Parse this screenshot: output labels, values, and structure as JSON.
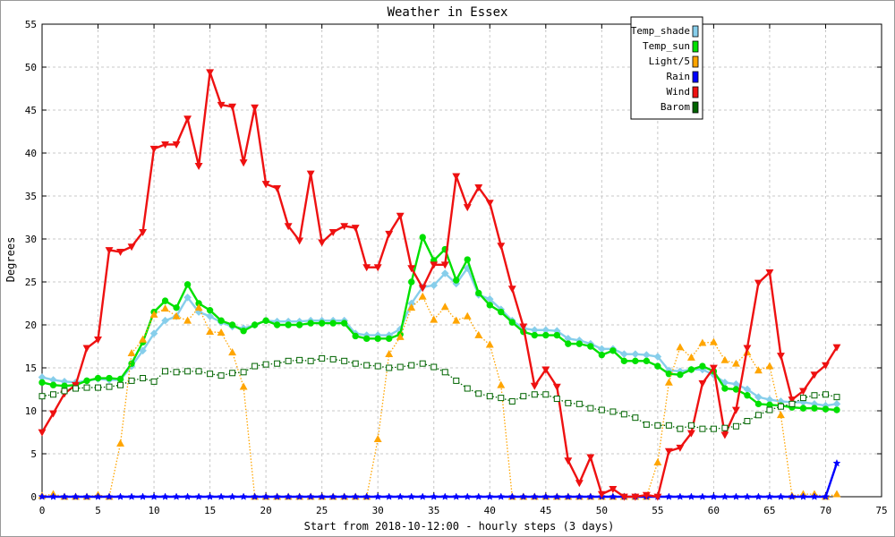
{
  "chart_data": {
    "type": "line",
    "title": "Weather in Essex",
    "xlabel": "Start from 2018-10-12:00 - hourly steps (3 days)",
    "ylabel": "Degrees",
    "xlim": [
      0,
      75
    ],
    "ylim": [
      0,
      55
    ],
    "x_ticks": [
      0,
      5,
      10,
      15,
      20,
      25,
      30,
      35,
      40,
      45,
      50,
      55,
      60,
      65,
      70,
      75
    ],
    "y_ticks": [
      0,
      5,
      10,
      15,
      20,
      25,
      30,
      35,
      40,
      45,
      50,
      55
    ],
    "grid": true,
    "legend_position": "top-right",
    "series": [
      {
        "name": "Temp_shade",
        "color": "#87ceeb",
        "marker": "diamond",
        "dash": "solid",
        "values": [
          13.9,
          13.6,
          13.4,
          13.3,
          13.5,
          13.7,
          13.6,
          13.6,
          15.2,
          17.0,
          19.0,
          20.5,
          21.0,
          23.2,
          21.5,
          21.0,
          20.3,
          19.8,
          19.6,
          20.0,
          20.5,
          20.4,
          20.4,
          20.4,
          20.5,
          20.5,
          20.5,
          20.5,
          19.0,
          18.8,
          18.8,
          18.8,
          19.5,
          22.5,
          24.4,
          24.6,
          26.0,
          24.8,
          26.6,
          23.5,
          23.0,
          21.8,
          20.5,
          19.6,
          19.4,
          19.4,
          19.3,
          18.4,
          18.2,
          17.8,
          17.2,
          17.2,
          16.6,
          16.6,
          16.5,
          16.3,
          14.7,
          14.6,
          14.8,
          14.8,
          14.2,
          13.3,
          13.1,
          12.5,
          11.6,
          11.3,
          11.1,
          11.0,
          11.0,
          10.8,
          10.6,
          10.8
        ]
      },
      {
        "name": "Temp_sun",
        "color": "#00e000",
        "marker": "circle",
        "dash": "solid",
        "values": [
          13.3,
          13.0,
          12.9,
          13.0,
          13.5,
          13.8,
          13.8,
          13.7,
          15.5,
          18.0,
          21.5,
          22.8,
          22.0,
          24.7,
          22.5,
          21.7,
          20.5,
          20.0,
          19.3,
          20.0,
          20.5,
          20.0,
          20.0,
          20.0,
          20.2,
          20.2,
          20.2,
          20.2,
          18.7,
          18.4,
          18.4,
          18.4,
          18.9,
          25.0,
          30.2,
          27.5,
          28.8,
          25.2,
          27.6,
          23.7,
          22.3,
          21.5,
          20.3,
          19.2,
          18.8,
          18.8,
          18.8,
          17.8,
          17.8,
          17.5,
          16.5,
          17.0,
          15.8,
          15.8,
          15.8,
          15.2,
          14.3,
          14.2,
          14.8,
          15.2,
          14.6,
          12.6,
          12.5,
          11.8,
          10.8,
          10.7,
          10.6,
          10.4,
          10.3,
          10.3,
          10.2,
          10.1
        ]
      },
      {
        "name": "Light/5",
        "color": "#ffa500",
        "marker": "triangle-up",
        "dash": "dotted",
        "values": [
          0.1,
          0.3,
          0,
          0,
          0,
          0.2,
          0,
          6.2,
          16.7,
          18.3,
          21.2,
          21.9,
          21.0,
          20.5,
          22.0,
          19.2,
          19.1,
          16.8,
          12.8,
          0,
          0,
          0,
          0,
          0,
          0,
          0,
          0,
          0,
          0,
          0,
          6.7,
          16.6,
          18.6,
          22.0,
          23.3,
          20.6,
          22.1,
          20.5,
          21.0,
          18.8,
          17.7,
          13.0,
          0,
          0,
          0,
          0,
          0,
          0,
          0,
          0,
          0,
          0,
          0,
          0,
          0,
          4.0,
          13.3,
          17.4,
          16.2,
          17.9,
          18.0,
          15.9,
          15.5,
          16.8,
          14.7,
          15.2,
          9.5,
          0.1,
          0.3,
          0.3,
          0,
          0.3
        ]
      },
      {
        "name": "Rain",
        "color": "#0000ff",
        "marker": "star",
        "dash": "solid",
        "values": [
          0,
          0,
          0,
          0,
          0,
          0,
          0,
          0,
          0,
          0,
          0,
          0,
          0,
          0,
          0,
          0,
          0,
          0,
          0,
          0,
          0,
          0,
          0,
          0,
          0,
          0,
          0,
          0,
          0,
          0,
          0,
          0,
          0,
          0,
          0,
          0,
          0,
          0,
          0,
          0,
          0,
          0,
          0,
          0,
          0,
          0,
          0,
          0,
          0,
          0,
          0,
          0,
          0,
          0,
          0,
          0,
          0,
          0,
          0,
          0,
          0,
          0,
          0,
          0,
          0,
          0,
          0,
          0,
          0,
          0,
          0,
          3.9
        ]
      },
      {
        "name": "Wind",
        "color": "#ee1111",
        "marker": "triangle-down",
        "dash": "solid",
        "values": [
          7.5,
          9.7,
          12.0,
          13.0,
          17.3,
          18.3,
          28.7,
          28.5,
          29.1,
          30.8,
          40.5,
          41.0,
          41.0,
          44.0,
          38.5,
          49.4,
          45.6,
          45.4,
          38.9,
          45.3,
          36.4,
          35.9,
          31.5,
          29.8,
          37.6,
          29.6,
          30.8,
          31.5,
          31.3,
          26.7,
          26.7,
          30.6,
          32.7,
          26.6,
          24.3,
          27.0,
          27.0,
          37.3,
          33.7,
          36.0,
          34.2,
          29.2,
          24.2,
          19.8,
          12.9,
          14.8,
          12.8,
          4.2,
          1.6,
          4.6,
          0.3,
          0.9,
          0,
          0,
          0.2,
          0,
          5.3,
          5.7,
          7.4,
          13.2,
          15.0,
          7.2,
          10.1,
          17.3,
          24.9,
          26.1,
          16.4,
          11.3,
          12.3,
          14.2,
          15.3,
          17.4
        ]
      },
      {
        "name": "Barom",
        "color": "#006400",
        "marker": "square-open",
        "dash": "dotted",
        "values": [
          11.7,
          11.9,
          12.3,
          12.6,
          12.7,
          12.7,
          12.8,
          13.0,
          13.5,
          13.8,
          13.4,
          14.6,
          14.5,
          14.6,
          14.6,
          14.3,
          14.1,
          14.4,
          14.5,
          15.2,
          15.4,
          15.5,
          15.8,
          15.9,
          15.8,
          16.1,
          16.0,
          15.8,
          15.5,
          15.3,
          15.2,
          15.0,
          15.1,
          15.3,
          15.5,
          15.1,
          14.5,
          13.5,
          12.6,
          12.0,
          11.7,
          11.5,
          11.1,
          11.7,
          11.9,
          11.9,
          11.4,
          10.9,
          10.8,
          10.3,
          10.1,
          9.9,
          9.6,
          9.2,
          8.4,
          8.3,
          8.3,
          7.9,
          8.3,
          7.9,
          7.9,
          8.0,
          8.2,
          8.8,
          9.5,
          10.1,
          10.5,
          10.8,
          11.5,
          11.8,
          11.9,
          11.6
        ]
      }
    ]
  }
}
